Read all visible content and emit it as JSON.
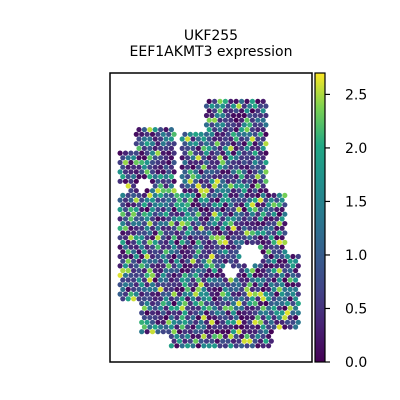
{
  "chart_data": {
    "type": "scatter",
    "title": "UKF255",
    "subtitle": "EEF1AKMT3 expression",
    "xlabel": "",
    "ylabel": "",
    "grid": false,
    "colormap": "viridis",
    "colorbar": {
      "range": [
        0.0,
        2.7
      ],
      "ticks": [
        0.0,
        0.5,
        1.0,
        1.5,
        2.0,
        2.5
      ],
      "tick_labels": [
        "0.0",
        "0.5",
        "1.0",
        "1.5",
        "2.0",
        "2.5"
      ]
    },
    "colors": {
      "low": "#440154",
      "mid": "#21918c",
      "high": "#fde725",
      "frame": "#000000"
    },
    "series": [
      {
        "values": []
      }
    ]
  }
}
